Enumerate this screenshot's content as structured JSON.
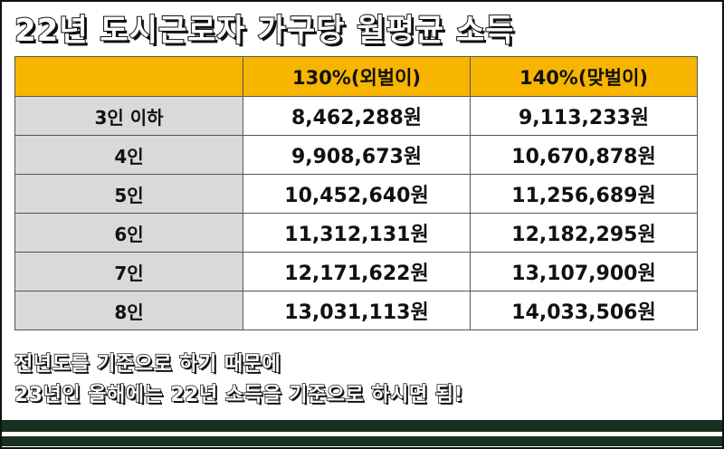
{
  "title": "22년 도시근로자 가구당 월평균 소득",
  "table": {
    "headers": [
      "",
      "130%(외벌이)",
      "140%(맞벌이)"
    ],
    "rows": [
      {
        "label": "3인 이하",
        "v130": "8,462,288원",
        "v140": "9,113,233원"
      },
      {
        "label": "4인",
        "v130": "9,908,673원",
        "v140": "10,670,878원"
      },
      {
        "label": "5인",
        "v130": "10,452,640원",
        "v140": "11,256,689원"
      },
      {
        "label": "6인",
        "v130": "11,312,131원",
        "v140": "12,182,295원"
      },
      {
        "label": "7인",
        "v130": "12,171,622원",
        "v140": "13,107,900원"
      },
      {
        "label": "8인",
        "v130": "13,031,113원",
        "v140": "14,033,506원"
      }
    ]
  },
  "notes": {
    "line1": "전년도를 기준으로 하기 때문에",
    "line2": "23년인 올해에는 22년 소득을 기준으로 하시면 됨!"
  },
  "colors": {
    "header_bg": "#f7b500",
    "rowhead_bg": "#d9d9d9",
    "stripe": "#17301f"
  }
}
